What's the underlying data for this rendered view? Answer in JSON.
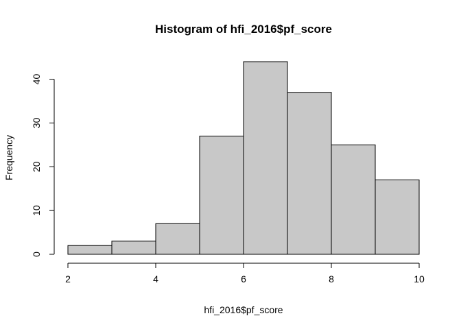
{
  "chart_data": {
    "type": "bar",
    "title": "Histogram of hfi_2016$pf_score",
    "xlabel": "hfi_2016$pf_score",
    "ylabel": "Frequency",
    "bins": [
      {
        "start": 2,
        "end": 3,
        "count": 2
      },
      {
        "start": 3,
        "end": 4,
        "count": 3
      },
      {
        "start": 4,
        "end": 5,
        "count": 7
      },
      {
        "start": 5,
        "end": 6,
        "count": 27
      },
      {
        "start": 6,
        "end": 7,
        "count": 44
      },
      {
        "start": 7,
        "end": 8,
        "count": 37
      },
      {
        "start": 8,
        "end": 9,
        "count": 25
      },
      {
        "start": 9,
        "end": 10,
        "count": 17
      }
    ],
    "x_ticks": [
      2,
      4,
      6,
      8,
      10
    ],
    "y_ticks": [
      0,
      10,
      20,
      30,
      40
    ],
    "xlim": [
      2,
      10
    ],
    "ylim": [
      0,
      44
    ],
    "bar_color": "#c8c8c8",
    "grid": false,
    "legend": "none"
  }
}
